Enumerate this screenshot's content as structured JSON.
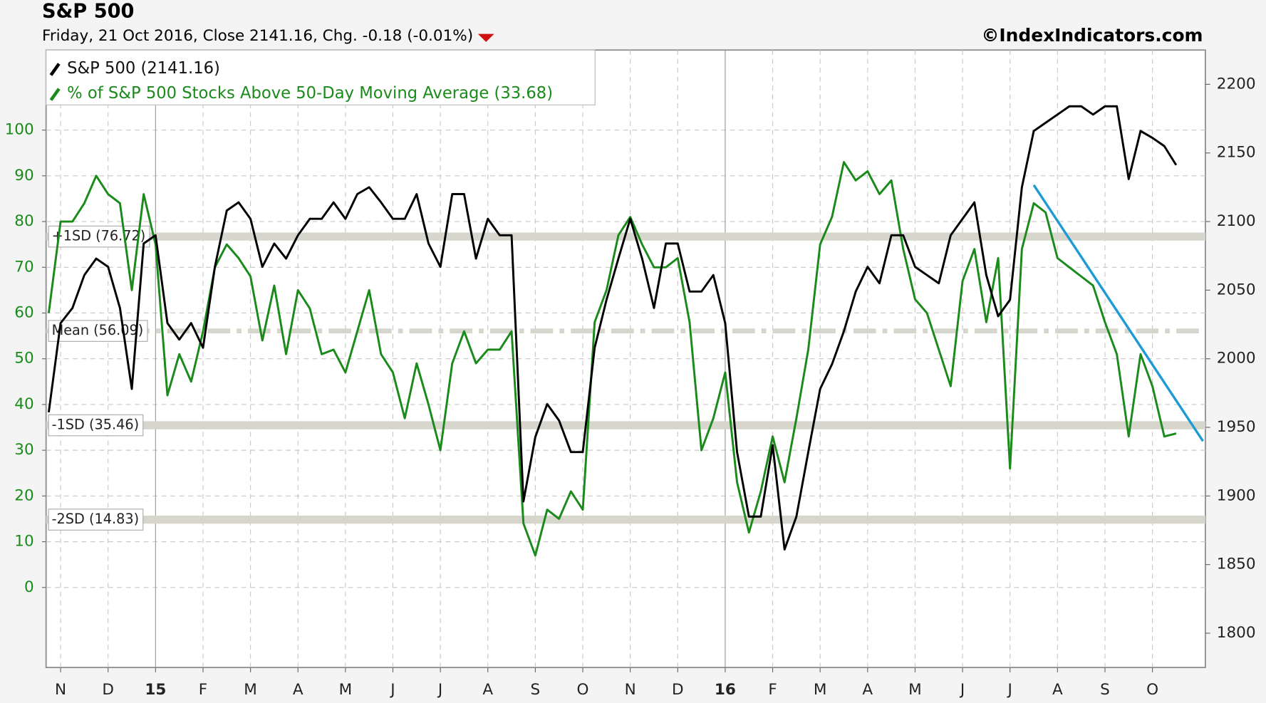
{
  "chart_data": {
    "type": "line",
    "title": "S&P 500",
    "subtitle": "Friday, 21 Oct 2016, Close 2141.16, Chg. -0.18 (-0.01%)",
    "credit": "©IndexIndicators.com",
    "categories": [
      null,
      "N",
      null,
      null,
      null,
      "D",
      null,
      null,
      null,
      "15",
      null,
      null,
      null,
      "F",
      null,
      null,
      null,
      "M",
      null,
      null,
      null,
      "A",
      null,
      null,
      null,
      "M",
      null,
      null,
      null,
      "J",
      null,
      null,
      null,
      "J",
      null,
      null,
      null,
      "A",
      null,
      null,
      null,
      "S",
      null,
      null,
      null,
      "O",
      null,
      null,
      null,
      "N",
      null,
      null,
      null,
      "D",
      null,
      null,
      null,
      "16",
      null,
      null,
      null,
      "F",
      null,
      null,
      null,
      "M",
      null,
      null,
      null,
      "A",
      null,
      null,
      null,
      "M",
      null,
      null,
      null,
      "J",
      null,
      null,
      null,
      "J",
      null,
      null,
      null,
      "A",
      null,
      null,
      null,
      "S",
      null,
      null,
      null,
      "O",
      null,
      null
    ],
    "series": [
      {
        "name": "S&P 500 (2141.16)",
        "color": "#000000",
        "axis": "y2",
        "values": [
          1961,
          2026,
          2037,
          2061,
          2073,
          2067,
          2037,
          1978,
          2084,
          2090,
          2026,
          2014,
          2026,
          2008,
          2067,
          2108,
          2114,
          2102,
          2067,
          2084,
          2073,
          2090,
          2102,
          2102,
          2114,
          2102,
          2120,
          2125,
          2114,
          2102,
          2102,
          2120,
          2084,
          2067,
          2120,
          2120,
          2073,
          2102,
          2090,
          2090,
          1896,
          1943,
          1967,
          1955,
          1932,
          1932,
          2008,
          2043,
          2073,
          2102,
          2073,
          2037,
          2084,
          2084,
          2049,
          2049,
          2061,
          2026,
          1932,
          1885,
          1885,
          1937,
          1861,
          1885,
          1932,
          1978,
          1996,
          2020,
          2049,
          2067,
          2055,
          2090,
          2090,
          2067,
          2061,
          2055,
          2090,
          2102,
          2114,
          2061,
          2031,
          2043,
          2125,
          2166,
          2172,
          2178,
          2184,
          2184,
          2178,
          2184,
          2184,
          2131,
          2166,
          2161,
          2155,
          2141.16
        ]
      },
      {
        "name": "% of S&P 500 Stocks Above 50-Day Moving Average (33.68)",
        "color": "#1a8a1a",
        "axis": "y",
        "values": [
          60,
          80,
          80,
          84,
          90,
          86,
          84,
          65,
          86,
          75,
          42,
          51,
          45,
          56,
          70,
          75,
          72,
          68,
          54,
          66,
          51,
          65,
          61,
          51,
          52,
          47,
          56,
          65,
          51,
          47,
          37,
          49,
          40,
          30,
          49,
          56,
          49,
          52,
          52,
          56,
          14,
          7,
          17,
          15,
          21,
          17,
          58,
          65,
          77,
          81,
          75,
          70,
          70,
          72,
          58,
          30,
          37,
          47,
          23,
          12,
          21,
          33,
          23,
          37,
          52,
          75,
          81,
          93,
          89,
          91,
          86,
          89,
          74,
          63,
          60,
          52,
          44,
          67,
          74,
          58,
          72,
          26,
          74,
          84,
          82,
          72,
          70,
          68,
          66,
          58,
          51,
          33,
          51,
          44,
          33,
          33.68
        ]
      }
    ],
    "ylim": [
      -17.5,
      117.5
    ],
    "yticks": [
      0,
      10,
      20,
      30,
      40,
      50,
      60,
      70,
      80,
      90,
      100
    ],
    "y2lim": [
      1775,
      2225
    ],
    "y2ticks": [
      1800,
      1850,
      1900,
      1950,
      2000,
      2050,
      2100,
      2150,
      2200
    ],
    "grid": true,
    "bands": [
      {
        "label": "+1SD (76.72)",
        "value": 76.72,
        "style": "solid"
      },
      {
        "label": "Mean (56.09)",
        "value": 56.09,
        "style": "dashdot"
      },
      {
        "label": "-1SD (35.46)",
        "value": 35.46,
        "style": "solid"
      },
      {
        "label": "-2SD (14.83)",
        "value": 14.83,
        "style": "solid"
      }
    ],
    "trendline": {
      "color": "#1e9ad6",
      "values": [
        88,
        32
      ]
    }
  }
}
